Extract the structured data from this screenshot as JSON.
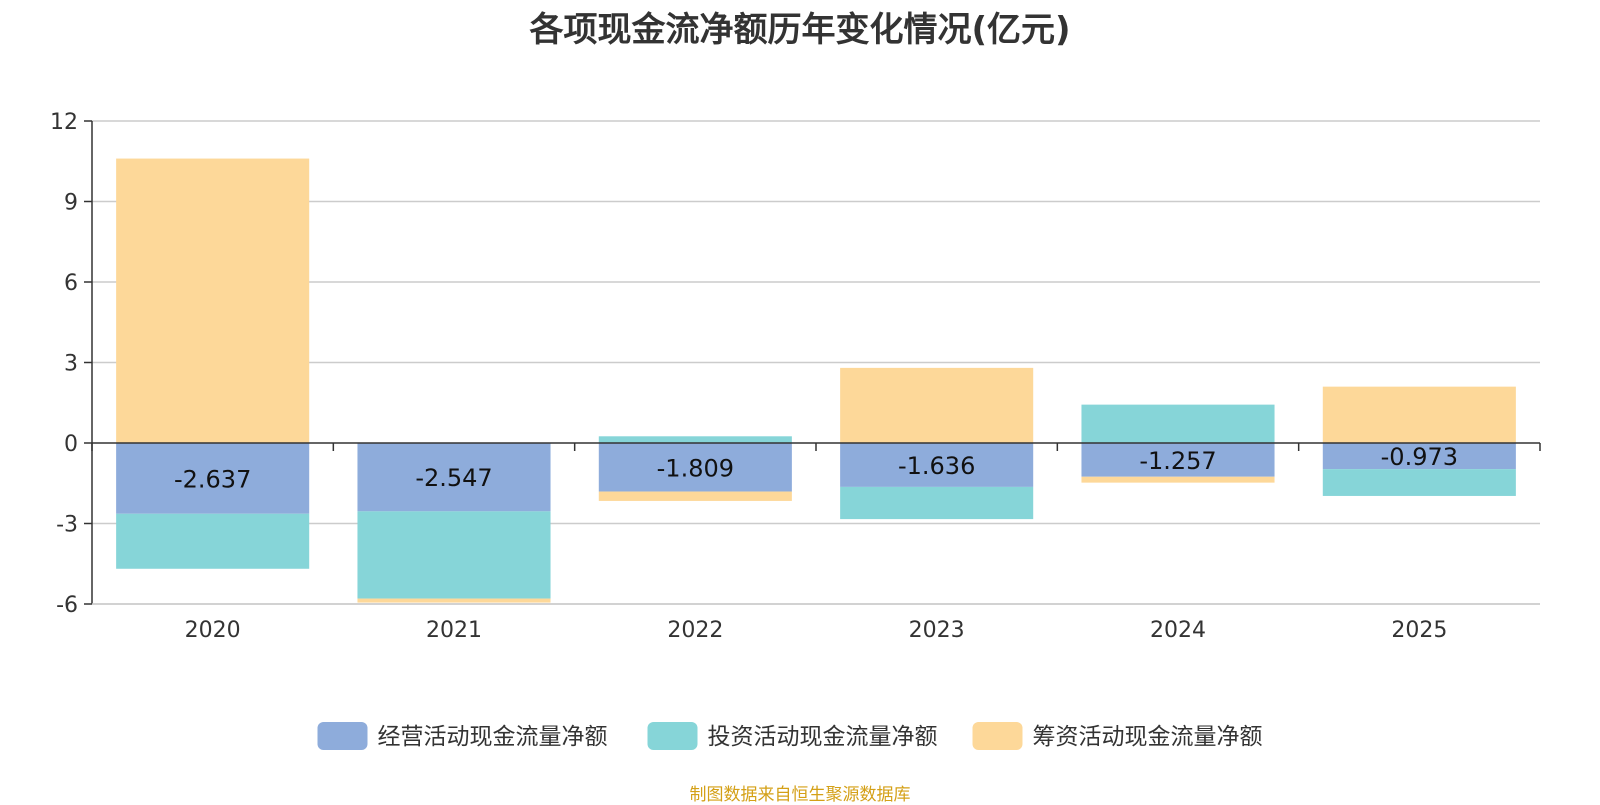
{
  "chart_data": {
    "type": "bar",
    "stacked": true,
    "title": "各项现金流净额历年变化情况(亿元)",
    "xlabel": "",
    "ylabel": "",
    "categories": [
      "2020",
      "2021",
      "2022",
      "2023",
      "2024",
      "2025"
    ],
    "ylim": [
      -6,
      12
    ],
    "yticks": [
      -6,
      -3,
      0,
      3,
      6,
      9,
      12
    ],
    "grid": true,
    "legend_position": "bottom",
    "series": [
      {
        "name": "经营活动现金流量净额",
        "color": "#8eacdb",
        "values": [
          -2.637,
          -2.547,
          -1.809,
          -1.636,
          -1.257,
          -0.973
        ],
        "labels": [
          "-2.637",
          "-2.547",
          "-1.809",
          "-1.636",
          "-1.257",
          "-0.973"
        ]
      },
      {
        "name": "投资活动现金流量净额",
        "color": "#86d5d8",
        "values": [
          -2.05,
          -3.25,
          0.25,
          -1.2,
          1.43,
          -1.0
        ]
      },
      {
        "name": "筹资活动现金流量净额",
        "color": "#fdd899",
        "values": [
          10.6,
          -0.15,
          -0.35,
          2.8,
          -0.22,
          2.1
        ]
      }
    ]
  },
  "footer": {
    "source": "制图数据来自恒生聚源数据库"
  }
}
